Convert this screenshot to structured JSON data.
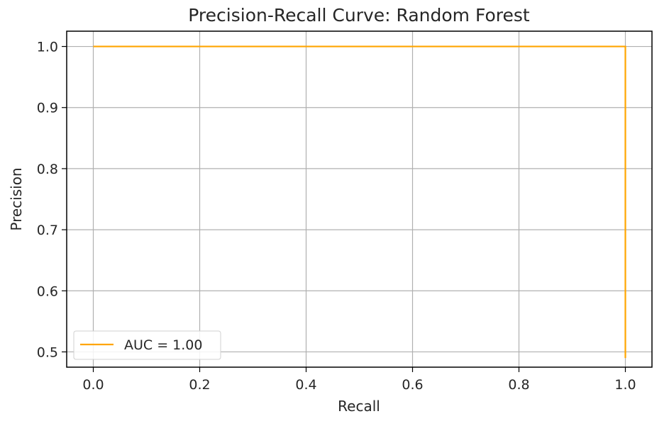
{
  "chart_data": {
    "type": "line",
    "title": "Precision-Recall Curve: Random Forest",
    "xlabel": "Recall",
    "ylabel": "Precision",
    "xlim": [
      -0.05,
      1.05
    ],
    "ylim": [
      0.475,
      1.025
    ],
    "xticks": [
      0.0,
      0.2,
      0.4,
      0.6,
      0.8,
      1.0
    ],
    "xtick_labels": [
      "0.0",
      "0.2",
      "0.4",
      "0.6",
      "0.8",
      "1.0"
    ],
    "yticks": [
      0.5,
      0.6,
      0.7,
      0.8,
      0.9,
      1.0
    ],
    "ytick_labels": [
      "0.5",
      "0.6",
      "0.7",
      "0.8",
      "0.9",
      "1.0"
    ],
    "grid": true,
    "legend_position": "lower-left",
    "series": [
      {
        "name": "AUC = 1.00",
        "color": "#ffa500",
        "x": [
          0.0,
          1.0,
          1.0
        ],
        "y": [
          1.0,
          1.0,
          0.49
        ]
      }
    ]
  }
}
